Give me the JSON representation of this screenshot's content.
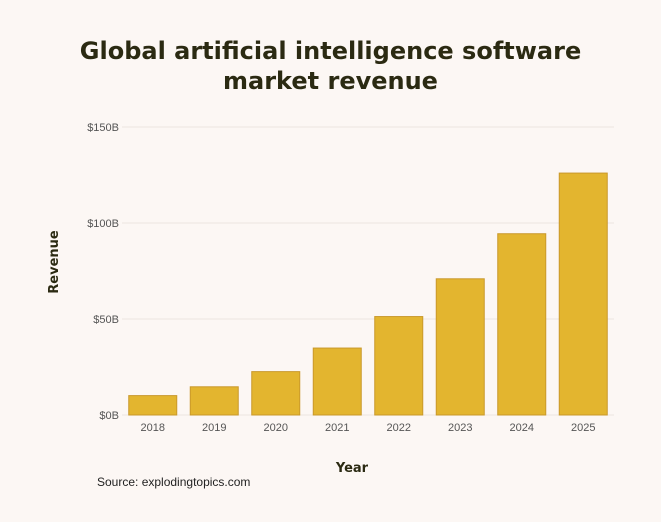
{
  "chart_data": {
    "type": "bar",
    "title": "Global artificial intelligence software market revenue",
    "title_lines": [
      "Global artificial intelligence software",
      "market revenue"
    ],
    "xlabel": "Year",
    "ylabel": "Revenue",
    "categories": [
      "2018",
      "2019",
      "2020",
      "2021",
      "2022",
      "2023",
      "2024",
      "2025"
    ],
    "values": [
      10.1,
      14.69,
      22.59,
      34.87,
      51.27,
      70.94,
      94.41,
      126.0
    ],
    "unit": "billion USD",
    "ylim": [
      0,
      150
    ],
    "yticks": [
      0,
      50,
      100,
      150
    ],
    "ytick_labels": [
      "$0B",
      "$50B",
      "$100B",
      "$150B"
    ],
    "grid": true,
    "legend": "none",
    "bar_color": "#e3b52f",
    "bar_edge_color": "#c9982a"
  },
  "source": "Source: explodingtopics.com"
}
